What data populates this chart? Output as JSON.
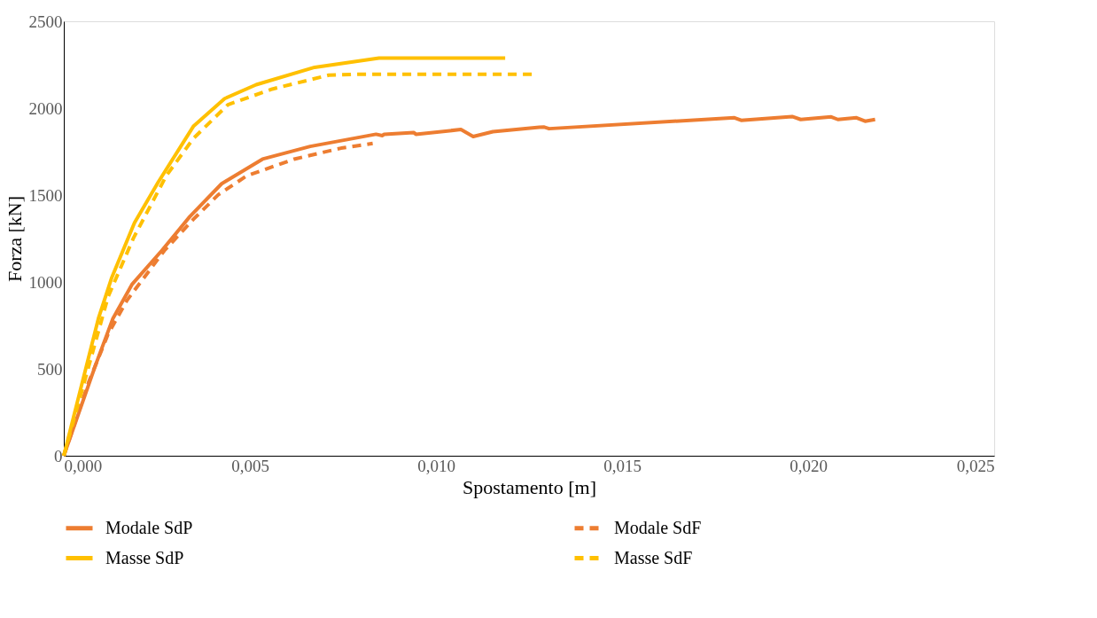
{
  "chart_data": {
    "type": "line",
    "xlabel": "Spostamento [m]",
    "ylabel": "Forza [kN]",
    "xlim": [
      0,
      0.025
    ],
    "ylim": [
      0,
      2500
    ],
    "xticks": [
      {
        "value": 0,
        "label": "0,000"
      },
      {
        "value": 0.005,
        "label": "0,005"
      },
      {
        "value": 0.01,
        "label": "0,010"
      },
      {
        "value": 0.015,
        "label": "0,015"
      },
      {
        "value": 0.02,
        "label": "0,020"
      },
      {
        "value": 0.025,
        "label": "0,025"
      }
    ],
    "yticks": [
      0,
      500,
      1000,
      1500,
      2000,
      2500
    ],
    "grid": false,
    "legend": "bottom",
    "marker": "none",
    "series": [
      {
        "name": "Modale SdP",
        "color": "#ed7d31",
        "line_style": "solid",
        "x": [
          0,
          0.00085,
          0.00132,
          0.00183,
          0.00263,
          0.00339,
          0.00424,
          0.00534,
          0.00662,
          0.00839,
          0.00856,
          0.00861,
          0.0094,
          0.00946,
          0.01067,
          0.011,
          0.01153,
          0.01278,
          0.01291,
          0.01304,
          0.01802,
          0.0182,
          0.01957,
          0.0198,
          0.02062,
          0.0208,
          0.0213,
          0.02153,
          0.0218
        ],
        "values": [
          0,
          520,
          790,
          985,
          1180,
          1377,
          1565,
          1707,
          1780,
          1850,
          1842,
          1850,
          1860,
          1850,
          1877,
          1837,
          1865,
          1890,
          1891,
          1882,
          1945,
          1930,
          1952,
          1935,
          1950,
          1935,
          1945,
          1925,
          1935
        ]
      },
      {
        "name": "Modale SdF",
        "color": "#ed7d31",
        "line_style": "dashed",
        "x": [
          0,
          0.00068,
          0.00119,
          0.0017,
          0.0027,
          0.00348,
          0.00415,
          0.00491,
          0.00619,
          0.00745,
          0.0083
        ],
        "values": [
          0,
          430,
          700,
          895,
          1180,
          1360,
          1502,
          1610,
          1707,
          1770,
          1797
        ]
      },
      {
        "name": "Masse SdP",
        "color": "#ffc000",
        "line_style": "solid",
        "x": [
          0,
          0.00093,
          0.00128,
          0.0019,
          0.00254,
          0.00348,
          0.00432,
          0.00517,
          0.00674,
          0.00847,
          0.01186
        ],
        "values": [
          0,
          790,
          1020,
          1341,
          1575,
          1895,
          2055,
          2135,
          2235,
          2288,
          2288
        ]
      },
      {
        "name": "Masse SdF",
        "color": "#ffc000",
        "line_style": "dashed",
        "x": [
          0,
          0.00119,
          0.00187,
          0.00275,
          0.00348,
          0.00441,
          0.0056,
          0.00712,
          0.0078,
          0.01264
        ],
        "values": [
          0,
          915,
          1252,
          1610,
          1825,
          2020,
          2110,
          2190,
          2195,
          2195
        ]
      }
    ]
  }
}
